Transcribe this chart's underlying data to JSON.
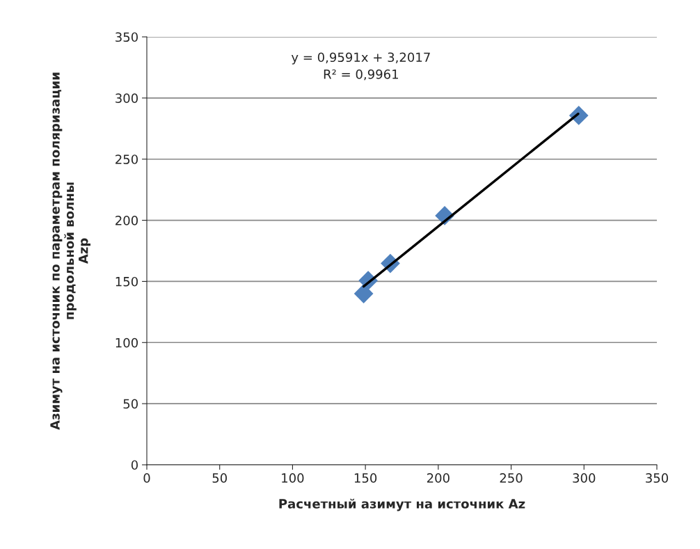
{
  "chart_data": {
    "type": "scatter",
    "xlabel": "Расчетный азимут на источник Az",
    "ylabel": "Азимут на источник по параметрам поляризации\nпродольной волны\nAzp",
    "annotations": [
      "y = 0,9591x + 3,2017\nR² = 0,9961"
    ],
    "series": [
      {
        "color": "#4f81bd",
        "marker": "diamond",
        "x": [
          148.8,
          151.9,
          167.1,
          204.4,
          296.4
        ],
        "values": [
          140,
          150.7,
          164.7,
          203.8,
          285.7
        ]
      },
      {
        "type": "line",
        "color": "#000000",
        "marker": "none",
        "x": [
          148.8,
          296
        ],
        "values": [
          145.9,
          287.1
        ]
      }
    ],
    "xlim": [
      0,
      350
    ],
    "xticks": [
      0,
      50,
      100,
      150,
      200,
      250,
      300,
      350
    ],
    "ylim": [
      0,
      350
    ],
    "yticks": [
      0,
      50,
      100,
      150,
      200,
      250,
      300,
      350
    ],
    "grid": "y",
    "legend": false
  }
}
